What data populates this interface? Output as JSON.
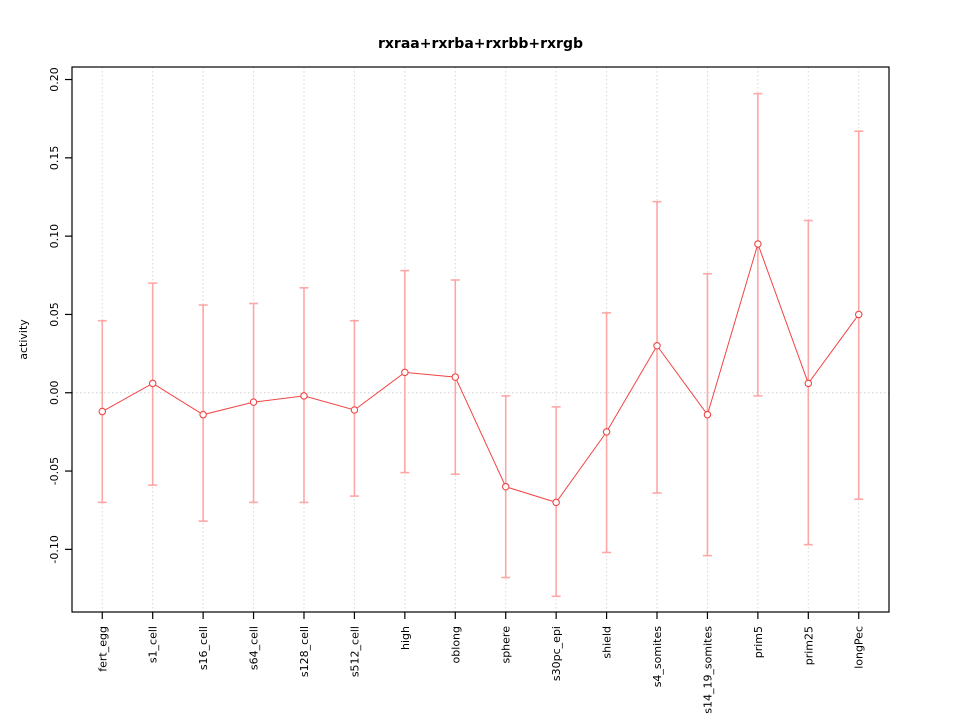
{
  "chart_data": {
    "type": "line",
    "title": "rxraa+rxrba+rxrbb+rxrgb",
    "ylabel": "activity",
    "xlabel": "",
    "legend": "none",
    "grid": "dotted vertical gridline per category, dotted horizontal line at 0",
    "categories": [
      "fert_egg",
      "s1_cell",
      "s16_cell",
      "s64_cell",
      "s128_cell",
      "s512_cell",
      "high",
      "oblong",
      "sphere",
      "s30pc_epi",
      "shield",
      "s4_somites",
      "s14_19_somites",
      "prim5",
      "prim25",
      "longPec"
    ],
    "series": [
      {
        "name": "activity",
        "values": [
          -0.012,
          0.006,
          -0.014,
          -0.006,
          -0.002,
          -0.011,
          0.013,
          0.01,
          -0.06,
          -0.07,
          -0.025,
          0.03,
          -0.014,
          0.095,
          0.006,
          0.05
        ],
        "error_upper": [
          0.046,
          0.07,
          0.056,
          0.057,
          0.067,
          0.046,
          0.078,
          0.072,
          -0.002,
          -0.009,
          0.051,
          0.122,
          0.076,
          0.191,
          0.11,
          0.167
        ],
        "error_lower": [
          -0.07,
          -0.059,
          -0.082,
          -0.07,
          -0.07,
          -0.066,
          -0.051,
          -0.052,
          -0.118,
          -0.13,
          -0.102,
          -0.064,
          -0.104,
          -0.002,
          -0.097,
          -0.068
        ]
      }
    ],
    "yticks": [
      0.2,
      0.15,
      0.1,
      0.05,
      0.0,
      -0.05,
      -0.1
    ],
    "ytick_labels": [
      "0.20",
      "0.15",
      "0.10",
      "0.05",
      "0.00",
      "-0.05",
      "-0.10"
    ],
    "ylim": [
      -0.14,
      0.208
    ],
    "colors": {
      "line": "#f04545",
      "point_stroke": "#f04545",
      "point_fill": "#ffffff",
      "errorbar": "#ff9999",
      "grid": "#d9d9d9",
      "zero_line": "#d0d0d0",
      "box": "#000000",
      "text": "#000000"
    }
  }
}
